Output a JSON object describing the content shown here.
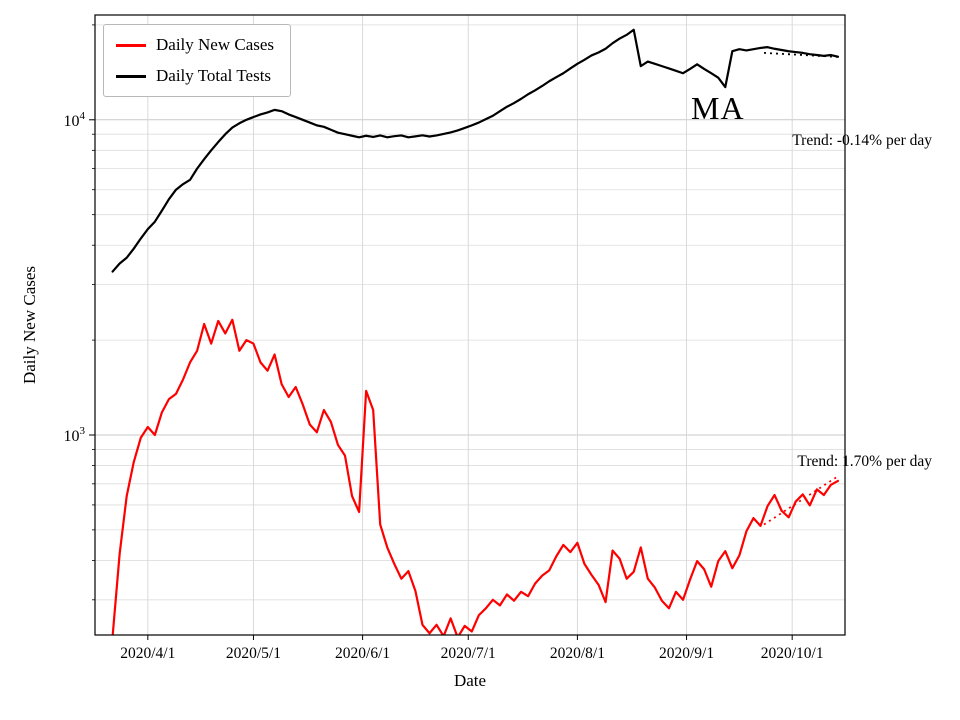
{
  "figure": {
    "background": "#ffffff"
  },
  "axes": {
    "xlabel": "Date",
    "ylabel": "Daily New Cases",
    "x_ticks": [
      {
        "date": "2020-04-01",
        "label": "2020/4/1"
      },
      {
        "date": "2020-05-01",
        "label": "2020/5/1"
      },
      {
        "date": "2020-06-01",
        "label": "2020/6/1"
      },
      {
        "date": "2020-07-01",
        "label": "2020/7/1"
      },
      {
        "date": "2020-08-01",
        "label": "2020/8/1"
      },
      {
        "date": "2020-09-01",
        "label": "2020/9/1"
      },
      {
        "date": "2020-10-01",
        "label": "2020/10/1"
      }
    ],
    "y_ticks": [
      {
        "value": 1000,
        "base": "10",
        "exp": "3"
      },
      {
        "value": 10000,
        "base": "10",
        "exp": "4"
      }
    ],
    "xlim": [
      "2020-03-17",
      "2020-10-16"
    ],
    "ylim": [
      232,
      21500
    ],
    "scale_y": "log",
    "grid": true
  },
  "legend": {
    "items": [
      {
        "label": "Daily New Cases",
        "color": "#ff0000"
      },
      {
        "label": "Daily Total Tests",
        "color": "#000000"
      }
    ]
  },
  "annotations": {
    "state": "MA",
    "trend_tests": {
      "label": "Trend: -0.14% per day"
    },
    "trend_cases": {
      "label": "Trend: 1.70% per day"
    }
  },
  "chart_data": {
    "type": "line",
    "title": "",
    "xlabel": "Date",
    "ylabel": "Daily New Cases",
    "x_dates": [
      "2020-03-22",
      "2020-03-24",
      "2020-03-26",
      "2020-03-28",
      "2020-03-30",
      "2020-04-01",
      "2020-04-03",
      "2020-04-05",
      "2020-04-07",
      "2020-04-09",
      "2020-04-11",
      "2020-04-13",
      "2020-04-15",
      "2020-04-17",
      "2020-04-19",
      "2020-04-21",
      "2020-04-23",
      "2020-04-25",
      "2020-04-27",
      "2020-04-29",
      "2020-05-01",
      "2020-05-03",
      "2020-05-05",
      "2020-05-07",
      "2020-05-09",
      "2020-05-11",
      "2020-05-13",
      "2020-05-15",
      "2020-05-17",
      "2020-05-19",
      "2020-05-21",
      "2020-05-23",
      "2020-05-25",
      "2020-05-27",
      "2020-05-29",
      "2020-05-31",
      "2020-06-02",
      "2020-06-04",
      "2020-06-06",
      "2020-06-08",
      "2020-06-10",
      "2020-06-12",
      "2020-06-14",
      "2020-06-16",
      "2020-06-18",
      "2020-06-20",
      "2020-06-22",
      "2020-06-24",
      "2020-06-26",
      "2020-06-28",
      "2020-06-30",
      "2020-07-02",
      "2020-07-04",
      "2020-07-06",
      "2020-07-08",
      "2020-07-10",
      "2020-07-12",
      "2020-07-14",
      "2020-07-16",
      "2020-07-18",
      "2020-07-20",
      "2020-07-22",
      "2020-07-24",
      "2020-07-26",
      "2020-07-28",
      "2020-07-30",
      "2020-08-01",
      "2020-08-03",
      "2020-08-05",
      "2020-08-07",
      "2020-08-09",
      "2020-08-11",
      "2020-08-13",
      "2020-08-15",
      "2020-08-17",
      "2020-08-19",
      "2020-08-21",
      "2020-08-23",
      "2020-08-25",
      "2020-08-27",
      "2020-08-29",
      "2020-08-31",
      "2020-09-02",
      "2020-09-04",
      "2020-09-06",
      "2020-09-08",
      "2020-09-10",
      "2020-09-12",
      "2020-09-14",
      "2020-09-16",
      "2020-09-18",
      "2020-09-20",
      "2020-09-22",
      "2020-09-24",
      "2020-09-26",
      "2020-09-28",
      "2020-09-30",
      "2020-10-02",
      "2020-10-04",
      "2020-10-06",
      "2020-10-08",
      "2020-10-10",
      "2020-10-12",
      "2020-10-14"
    ],
    "series": [
      {
        "name": "Daily New Cases",
        "color": "#ff0000",
        "values": [
          230,
          420,
          640,
          820,
          980,
          1060,
          1000,
          1180,
          1300,
          1350,
          1500,
          1700,
          1850,
          2250,
          1950,
          2300,
          2100,
          2320,
          1850,
          2000,
          1950,
          1700,
          1600,
          1800,
          1450,
          1320,
          1420,
          1250,
          1080,
          1020,
          1200,
          1100,
          930,
          860,
          640,
          570,
          1380,
          1200,
          520,
          440,
          390,
          350,
          370,
          320,
          250,
          235,
          250,
          230,
          262,
          228,
          248,
          238,
          268,
          282,
          300,
          288,
          312,
          298,
          318,
          308,
          338,
          358,
          372,
          412,
          448,
          425,
          455,
          390,
          360,
          335,
          295,
          430,
          405,
          350,
          368,
          440,
          350,
          328,
          298,
          282,
          318,
          300,
          348,
          398,
          375,
          330,
          398,
          428,
          378,
          415,
          495,
          545,
          515,
          595,
          645,
          575,
          548,
          615,
          648,
          598,
          672,
          645,
          695,
          715
        ]
      },
      {
        "name": "Daily Total Tests",
        "color": "#000000",
        "values": [
          3300,
          3500,
          3650,
          3900,
          4200,
          4500,
          4750,
          5150,
          5600,
          6000,
          6250,
          6450,
          7000,
          7500,
          8000,
          8500,
          9000,
          9450,
          9750,
          10000,
          10200,
          10400,
          10550,
          10750,
          10650,
          10400,
          10200,
          10000,
          9800,
          9600,
          9500,
          9300,
          9100,
          9000,
          8900,
          8800,
          8900,
          8820,
          8920,
          8800,
          8870,
          8920,
          8800,
          8860,
          8930,
          8850,
          8920,
          9020,
          9120,
          9250,
          9420,
          9600,
          9800,
          10050,
          10300,
          10650,
          11000,
          11300,
          11650,
          12050,
          12400,
          12800,
          13250,
          13650,
          14050,
          14550,
          15050,
          15500,
          16000,
          16350,
          16800,
          17500,
          18100,
          18600,
          19300,
          14800,
          15300,
          15050,
          14800,
          14550,
          14300,
          14050,
          14500,
          15000,
          14500,
          14050,
          13600,
          12700,
          16500,
          16750,
          16600,
          16750,
          16900,
          17000,
          16800,
          16650,
          16500,
          16400,
          16300,
          16150,
          16050,
          15950,
          16050,
          15850
        ]
      }
    ],
    "trend_lines": [
      {
        "name": "cases-trend-line",
        "color": "#ff0000",
        "style": "dotted",
        "rate_label": "Trend: 1.70% per day",
        "points": [
          [
            "2020-09-23",
            520
          ],
          [
            "2020-10-14",
            740
          ]
        ]
      },
      {
        "name": "tests-trend-line",
        "color": "#000000",
        "style": "dotted",
        "rate_label": "Trend: -0.14% per day",
        "points": [
          [
            "2020-09-23",
            16300
          ],
          [
            "2020-10-14",
            15830
          ]
        ]
      }
    ],
    "legend_position": "upper left"
  }
}
